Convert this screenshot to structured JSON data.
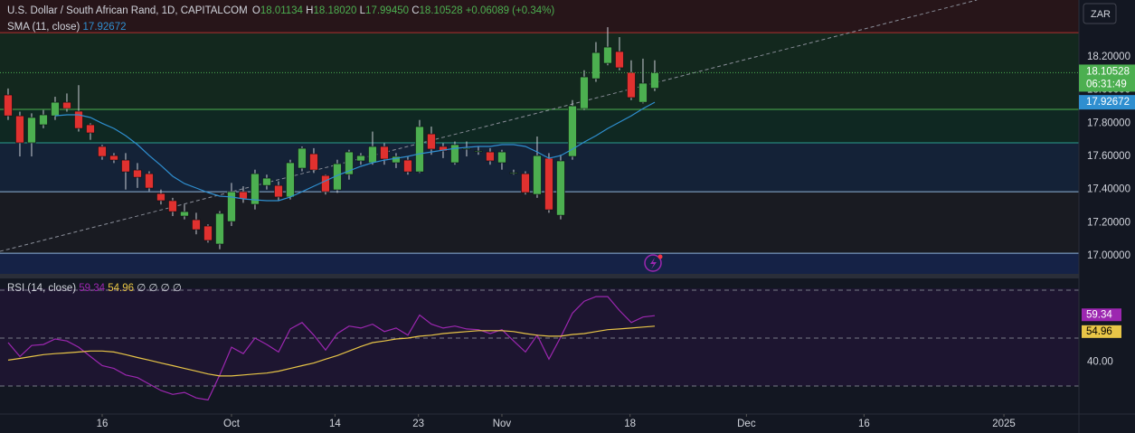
{
  "header": {
    "symbol": "U.S. Dollar / South African Rand, 1D, CAPITALCOM",
    "o_label": "O",
    "open": "18.01134",
    "h_label": "H",
    "high": "18.18020",
    "l_label": "L",
    "low": "17.99450",
    "c_label": "C",
    "close": "18.10528",
    "change": "+0.06089 (+0.34%)"
  },
  "sma_legend": {
    "name": "SMA (11, close)",
    "value": "17.92672"
  },
  "rsi_legend": {
    "name": "RSI (14, close)",
    "rsi": "59.34",
    "ma": "54.96",
    "flags": "∅ ∅ ∅ ∅"
  },
  "currency": "ZAR",
  "countdown": "06:31:49",
  "chart_data": {
    "type": "candlestick",
    "xlim": [
      -0.69,
      91.08
    ],
    "xticks": [
      {
        "value": 8,
        "label": "16"
      },
      {
        "value": 19,
        "label": "Oct"
      },
      {
        "value": 27.8,
        "label": "14"
      },
      {
        "value": 34.9,
        "label": "23"
      },
      {
        "value": 42,
        "label": "Nov"
      },
      {
        "value": 52.9,
        "label": "18"
      },
      {
        "value": 62.8,
        "label": "Dec"
      },
      {
        "value": 72.8,
        "label": "16"
      },
      {
        "value": 84.7,
        "label": "2025"
      }
    ],
    "ylim": [
      16.891,
      18.544
    ],
    "yticks": [
      {
        "value": 18.2,
        "label": "18.20000"
      },
      {
        "value": 18.0,
        "label": "18.00000"
      },
      {
        "value": 17.8,
        "label": "17.80000"
      },
      {
        "value": 17.6,
        "label": "17.60000"
      },
      {
        "value": 17.4,
        "label": "17.40000"
      },
      {
        "value": 17.2,
        "label": "17.20000"
      },
      {
        "value": 17.0,
        "label": "17.00000"
      }
    ],
    "up_color": "#4caf50",
    "down_color": "#e0312f",
    "open": [
      17.971,
      17.845,
      17.682,
      17.791,
      17.845,
      17.927,
      17.873,
      17.791,
      17.66,
      17.605,
      17.578,
      17.518,
      17.496,
      17.376,
      17.333,
      17.24,
      17.218,
      17.18,
      17.071,
      17.207,
      17.387,
      17.311,
      17.425,
      17.425,
      17.355,
      17.529,
      17.616,
      17.485,
      17.398,
      17.491,
      17.573,
      17.562,
      17.66,
      17.562,
      17.578,
      17.507,
      17.736,
      17.66,
      17.562,
      17.644,
      17.633,
      17.627,
      17.562,
      17.502,
      17.496,
      17.371,
      17.589,
      17.245,
      17.6,
      17.889,
      18.069,
      18.162,
      18.233,
      18.107,
      17.927,
      18.01134
    ],
    "high": [
      18.01,
      17.87,
      17.86,
      17.88,
      17.96,
      17.98,
      18.03,
      17.8,
      17.67,
      17.62,
      17.62,
      17.56,
      17.51,
      17.4,
      17.35,
      17.31,
      17.26,
      17.19,
      17.27,
      17.44,
      17.42,
      17.52,
      17.49,
      17.45,
      17.58,
      17.66,
      17.65,
      17.49,
      17.58,
      17.64,
      17.62,
      17.75,
      17.68,
      17.62,
      17.6,
      17.82,
      17.78,
      17.68,
      17.69,
      17.69,
      17.66,
      17.65,
      17.64,
      17.52,
      17.51,
      17.72,
      17.62,
      17.61,
      17.94,
      18.12,
      18.29,
      18.38,
      18.32,
      18.18,
      18.19,
      18.1802
    ],
    "low": [
      17.82,
      17.6,
      17.6,
      17.77,
      17.82,
      17.87,
      17.75,
      17.7,
      17.58,
      17.56,
      17.4,
      17.41,
      17.39,
      17.31,
      17.24,
      17.22,
      17.13,
      17.08,
      17.04,
      17.18,
      17.32,
      17.28,
      17.4,
      17.33,
      17.34,
      17.51,
      17.5,
      17.37,
      17.38,
      17.46,
      17.55,
      17.55,
      17.55,
      17.53,
      17.49,
      17.5,
      17.61,
      17.59,
      17.55,
      17.6,
      17.61,
      17.55,
      17.52,
      17.49,
      17.37,
      17.35,
      17.26,
      17.22,
      17.58,
      17.88,
      18.05,
      18.15,
      18.12,
      17.94,
      17.92,
      17.9945
    ],
    "close": [
      17.845,
      17.682,
      17.835,
      17.851,
      17.927,
      17.889,
      17.769,
      17.742,
      17.6,
      17.578,
      17.507,
      17.474,
      17.409,
      17.333,
      17.267,
      17.267,
      17.158,
      17.093,
      17.256,
      17.387,
      17.344,
      17.496,
      17.469,
      17.355,
      17.562,
      17.649,
      17.518,
      17.387,
      17.556,
      17.627,
      17.605,
      17.66,
      17.584,
      17.6,
      17.507,
      17.78,
      17.644,
      17.633,
      17.671,
      17.649,
      17.633,
      17.573,
      17.627,
      17.502,
      17.382,
      17.605,
      17.278,
      17.573,
      17.905,
      18.08,
      18.227,
      18.26,
      18.135,
      17.955,
      18.042,
      18.10528
    ],
    "sma": {
      "color": "#2f8fd0",
      "values": [
        null,
        null,
        null,
        null,
        17.845,
        17.851,
        17.851,
        17.835,
        17.8,
        17.769,
        17.725,
        17.671,
        17.605,
        17.545,
        17.48,
        17.436,
        17.409,
        17.382,
        17.36,
        17.355,
        17.344,
        17.338,
        17.333,
        17.333,
        17.355,
        17.387,
        17.42,
        17.453,
        17.485,
        17.513,
        17.54,
        17.562,
        17.578,
        17.589,
        17.6,
        17.616,
        17.627,
        17.638,
        17.649,
        17.655,
        17.66,
        17.66,
        17.671,
        17.671,
        17.66,
        17.627,
        17.589,
        17.605,
        17.644,
        17.687,
        17.725,
        17.769,
        17.807,
        17.845,
        17.889,
        17.92672
      ]
    },
    "levels": [
      {
        "value": 18.347,
        "color": "#b2302f"
      },
      {
        "value": 17.884,
        "color": "#4caf50"
      },
      {
        "value": 17.682,
        "color": "#2a9d8f"
      },
      {
        "value": 17.387,
        "color": "#8fb3d9"
      },
      {
        "value": 17.016,
        "color": "#8fb3d9"
      }
    ],
    "trendline": {
      "from": [
        -0.69,
        17.027
      ],
      "to": [
        82.4,
        18.544
      ],
      "color": "#8a8e99"
    },
    "rsi": {
      "ylim": [
        18.3,
        74.9
      ],
      "yticks": [
        {
          "value": 40,
          "label": "40.00"
        }
      ],
      "levels": [
        70,
        50,
        30
      ],
      "series": [
        {
          "name": "RSI",
          "color": "#9c27b0",
          "values": [
            48.1,
            42.3,
            46.9,
            47.3,
            49.6,
            48.8,
            46.2,
            42.3,
            38.5,
            37.3,
            34.6,
            33.5,
            30.8,
            28.1,
            26.5,
            27.3,
            25,
            24.2,
            34.6,
            46.2,
            43.5,
            50,
            47.3,
            44.2,
            53.8,
            56.5,
            51.2,
            45,
            51.9,
            55,
            54.2,
            55.8,
            52.7,
            54.2,
            51.2,
            59.6,
            55.8,
            54.2,
            55,
            53.8,
            53.5,
            51.9,
            53.5,
            48.8,
            44.2,
            51.2,
            41.2,
            50.4,
            60.4,
            65.4,
            67.3,
            67.3,
            61.5,
            56.5,
            58.8,
            59.34
          ]
        },
        {
          "name": "RSI MA",
          "color": "#e8c547",
          "values": [
            40.8,
            41.5,
            42.3,
            43.1,
            43.5,
            43.8,
            44.2,
            44.6,
            44.6,
            44.2,
            43.1,
            41.9,
            40.8,
            39.6,
            38.5,
            37.3,
            36.2,
            35,
            34.2,
            34.2,
            34.6,
            35,
            35.4,
            36.2,
            37.3,
            38.5,
            39.6,
            41.2,
            42.7,
            44.6,
            46.5,
            48.1,
            48.8,
            49.6,
            50,
            50.8,
            51.2,
            51.9,
            52.3,
            52.7,
            53.1,
            53.1,
            53.1,
            52.7,
            51.9,
            51.2,
            50.8,
            50.8,
            51.5,
            51.9,
            52.7,
            53.5,
            53.8,
            54.2,
            54.6,
            54.96
          ]
        }
      ]
    }
  }
}
